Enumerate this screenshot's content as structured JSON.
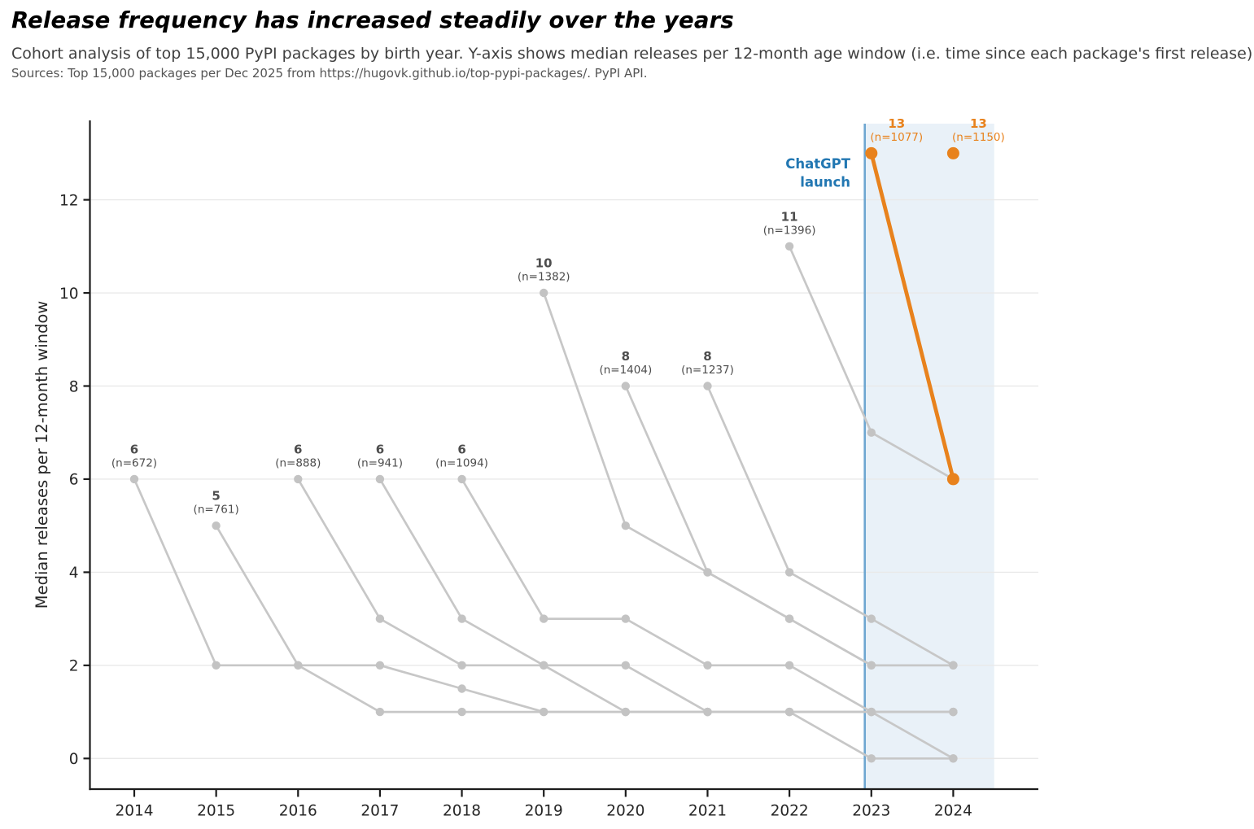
{
  "header": {
    "title": "Release frequency has increased steadily over the years",
    "subtitle": "Cohort analysis of top 15,000 PyPI packages by birth year. Y-axis shows median releases per 12-month age window (i.e. time since each package's first release).",
    "sources": "Sources: Top 15,000 packages per Dec 2025 from https://hugovk.github.io/top-pypi-packages/. PyPI API."
  },
  "chart_data": {
    "type": "line",
    "ylabel": "Median releases per 12-month window",
    "x_ticks": [
      2014,
      2015,
      2016,
      2017,
      2018,
      2019,
      2020,
      2021,
      2022,
      2023,
      2024
    ],
    "y_ticks": [
      0,
      2,
      4,
      6,
      8,
      10,
      12
    ],
    "ylim": [
      -0.65,
      13.7
    ],
    "grid": "horizontal-only",
    "legend": "none",
    "colors": {
      "gray": "#c7c7c7",
      "gray_dot": "#c3c3c3",
      "orange": "#e8821d",
      "label_text": "#4d4d4d",
      "annotation_text": "#2277b2",
      "vline": "#6fa7d1",
      "shade": "#d7e6f2",
      "axis": "#1c1c1c",
      "tick_text": "#262626",
      "gridline": "#e9e9e9"
    },
    "annotation": {
      "label_lines": [
        "ChatGPT",
        "launch"
      ],
      "vline_year": 2022.92,
      "shade_from_year": 2022.92,
      "shade_to_year": 2024.5
    },
    "series": [
      {
        "cohort": "2014",
        "start_year": 2014,
        "values": [
          6,
          2,
          2,
          2,
          1.5,
          1,
          1,
          1,
          1,
          1,
          1
        ],
        "peak_label": "6",
        "n_label": "(n=672)",
        "color": "gray",
        "label_dx": 0
      },
      {
        "cohort": "2015",
        "start_year": 2015,
        "values": [
          5,
          2,
          1,
          1,
          1,
          1,
          1,
          1,
          0,
          0
        ],
        "peak_label": "5",
        "n_label": "(n=761)",
        "color": "gray",
        "label_dx": 0
      },
      {
        "cohort": "2016",
        "start_year": 2016,
        "values": [
          6,
          3,
          2,
          2,
          2,
          1,
          1,
          1,
          1
        ],
        "peak_label": "6",
        "n_label": "(n=888)",
        "color": "gray",
        "label_dx": 0
      },
      {
        "cohort": "2017",
        "start_year": 2017,
        "values": [
          6,
          3,
          2,
          1,
          1,
          1,
          1,
          0
        ],
        "peak_label": "6",
        "n_label": "(n=941)",
        "color": "gray",
        "label_dx": 0
      },
      {
        "cohort": "2018",
        "start_year": 2018,
        "values": [
          6,
          3,
          3,
          2,
          2,
          1,
          1
        ],
        "peak_label": "6",
        "n_label": "(n=1094)",
        "color": "gray",
        "label_dx": 0
      },
      {
        "cohort": "2019",
        "start_year": 2019,
        "values": [
          10,
          5,
          4,
          3,
          2,
          2
        ],
        "peak_label": "10",
        "n_label": "(n=1382)",
        "color": "gray",
        "label_dx": 0
      },
      {
        "cohort": "2020",
        "start_year": 2020,
        "values": [
          8,
          4,
          3,
          2,
          2
        ],
        "peak_label": "8",
        "n_label": "(n=1404)",
        "color": "gray",
        "label_dx": 0
      },
      {
        "cohort": "2021",
        "start_year": 2021,
        "values": [
          8,
          4,
          3,
          2
        ],
        "peak_label": "8",
        "n_label": "(n=1237)",
        "color": "gray",
        "label_dx": 0
      },
      {
        "cohort": "2022",
        "start_year": 2022,
        "values": [
          11,
          7,
          6
        ],
        "peak_label": "11",
        "n_label": "(n=1396)",
        "color": "gray",
        "label_dx": 0
      },
      {
        "cohort": "2023",
        "start_year": 2023,
        "values": [
          13,
          6
        ],
        "peak_label": "13",
        "n_label": "(n=1077)",
        "color": "orange",
        "label_dx": 31
      },
      {
        "cohort": "2024",
        "start_year": 2024,
        "values": [
          13
        ],
        "peak_label": "13",
        "n_label": "(n=1150)",
        "color": "orange",
        "label_dx": 31
      }
    ]
  }
}
